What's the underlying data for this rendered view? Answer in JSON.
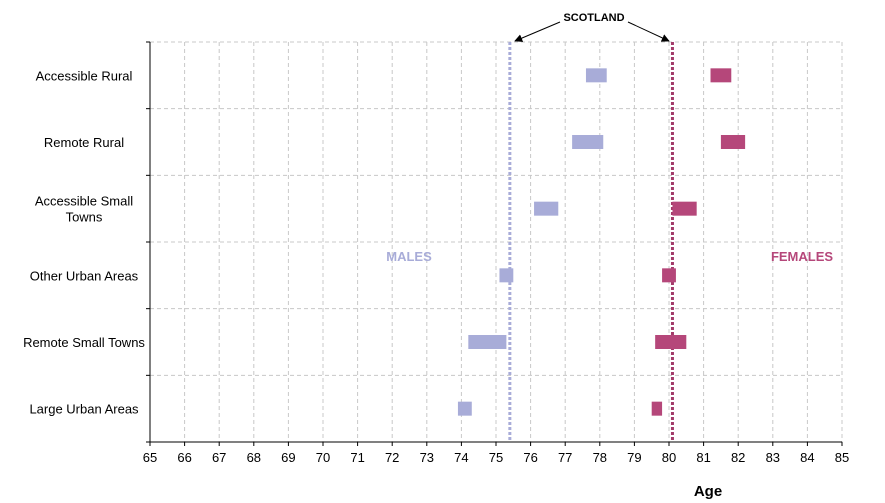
{
  "chart_data": {
    "type": "range-bar",
    "xlabel": "Age",
    "xlim": [
      65,
      85
    ],
    "x_ticks": [
      "65",
      "66",
      "67",
      "68",
      "69",
      "70",
      "71",
      "72",
      "73",
      "74",
      "75",
      "76",
      "77",
      "78",
      "79",
      "80",
      "81",
      "82",
      "83",
      "84",
      "85"
    ],
    "categories": [
      "Accessible Rural",
      "Remote Rural",
      "Accessible Small Towns",
      "Other Urban Areas",
      "Remote Small Towns",
      "Large Urban Areas"
    ],
    "category_lines": [
      [
        "Accessible Rural"
      ],
      [
        "Remote Rural"
      ],
      [
        "Accessible Small",
        "Towns"
      ],
      [
        "Other Urban Areas"
      ],
      [
        "Remote Small Towns"
      ],
      [
        "Large Urban Areas"
      ]
    ],
    "series": [
      {
        "name": "MALES",
        "color": "#a8acd8",
        "ranges": [
          [
            77.6,
            78.2
          ],
          [
            77.2,
            78.1
          ],
          [
            76.1,
            76.8
          ],
          [
            75.1,
            75.5
          ],
          [
            74.2,
            75.3
          ],
          [
            73.9,
            74.3
          ]
        ]
      },
      {
        "name": "FEMALES",
        "color": "#b5477a",
        "ranges": [
          [
            81.2,
            81.8
          ],
          [
            81.5,
            82.2
          ],
          [
            80.1,
            80.8
          ],
          [
            79.8,
            80.2
          ],
          [
            79.6,
            80.5
          ],
          [
            79.5,
            79.8
          ]
        ]
      }
    ],
    "reference_lines": [
      {
        "series": "MALES",
        "value": 75.4,
        "color": "#a8acd8"
      },
      {
        "series": "FEMALES",
        "value": 80.1,
        "color": "#a33b6a"
      }
    ],
    "annotation": "SCOTLAND",
    "grid": true,
    "legend": "inline labels: MALES left-centre, FEMALES right-centre"
  }
}
